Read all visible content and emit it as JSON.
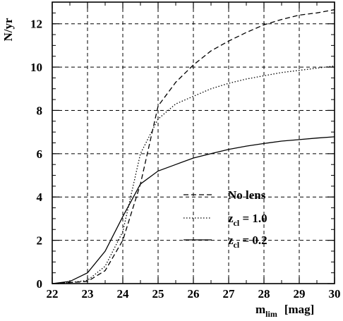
{
  "chart_data": {
    "type": "line",
    "xlabel": "m",
    "xlabel_sub": "lim",
    "xlabel_unit": "[mag]",
    "ylabel": "N/yr",
    "xlim": [
      22,
      30
    ],
    "ylim": [
      0,
      13
    ],
    "xticks": [
      22,
      23,
      24,
      25,
      26,
      27,
      28,
      29,
      30
    ],
    "yticks": [
      0,
      2,
      4,
      6,
      8,
      10,
      12
    ],
    "grid": true,
    "legend_position": "lower-right",
    "series": [
      {
        "name": "No lens",
        "name_parts": {
          "main": "No lens",
          "sub": "",
          "rest": ""
        },
        "dash": "dashed",
        "x": [
          22.0,
          22.5,
          23.0,
          23.5,
          24.0,
          24.5,
          25.0,
          25.5,
          26.0,
          26.5,
          27.0,
          27.5,
          28.0,
          28.5,
          29.0,
          29.5,
          30.0
        ],
        "y": [
          0.0,
          0.05,
          0.1,
          0.6,
          2.0,
          4.6,
          8.2,
          9.3,
          10.1,
          10.75,
          11.2,
          11.6,
          11.95,
          12.2,
          12.4,
          12.5,
          12.65
        ]
      },
      {
        "name": "z_cl = 1.0",
        "name_parts": {
          "main": "z",
          "sub": "cl",
          "rest": " = 1.0"
        },
        "dash": "dotted",
        "x": [
          22.0,
          22.5,
          23.0,
          23.5,
          24.0,
          24.5,
          25.0,
          25.5,
          26.0,
          26.5,
          27.0,
          27.5,
          28.0,
          28.5,
          29.0,
          29.5,
          30.0
        ],
        "y": [
          0.0,
          0.05,
          0.15,
          0.8,
          2.4,
          6.0,
          7.6,
          8.3,
          8.65,
          9.0,
          9.25,
          9.45,
          9.6,
          9.75,
          9.85,
          9.95,
          10.05
        ]
      },
      {
        "name": "z_cl = 0.2",
        "name_parts": {
          "main": "z",
          "sub": "cl",
          "rest": " = 0.2"
        },
        "dash": "solid",
        "x": [
          22.0,
          22.5,
          23.0,
          23.5,
          24.0,
          24.5,
          25.0,
          25.5,
          26.0,
          26.5,
          27.0,
          27.5,
          28.0,
          28.5,
          29.0,
          29.5,
          30.0
        ],
        "y": [
          0.0,
          0.1,
          0.5,
          1.5,
          3.1,
          4.6,
          5.2,
          5.5,
          5.8,
          6.0,
          6.2,
          6.35,
          6.47,
          6.58,
          6.65,
          6.72,
          6.78
        ]
      }
    ]
  }
}
